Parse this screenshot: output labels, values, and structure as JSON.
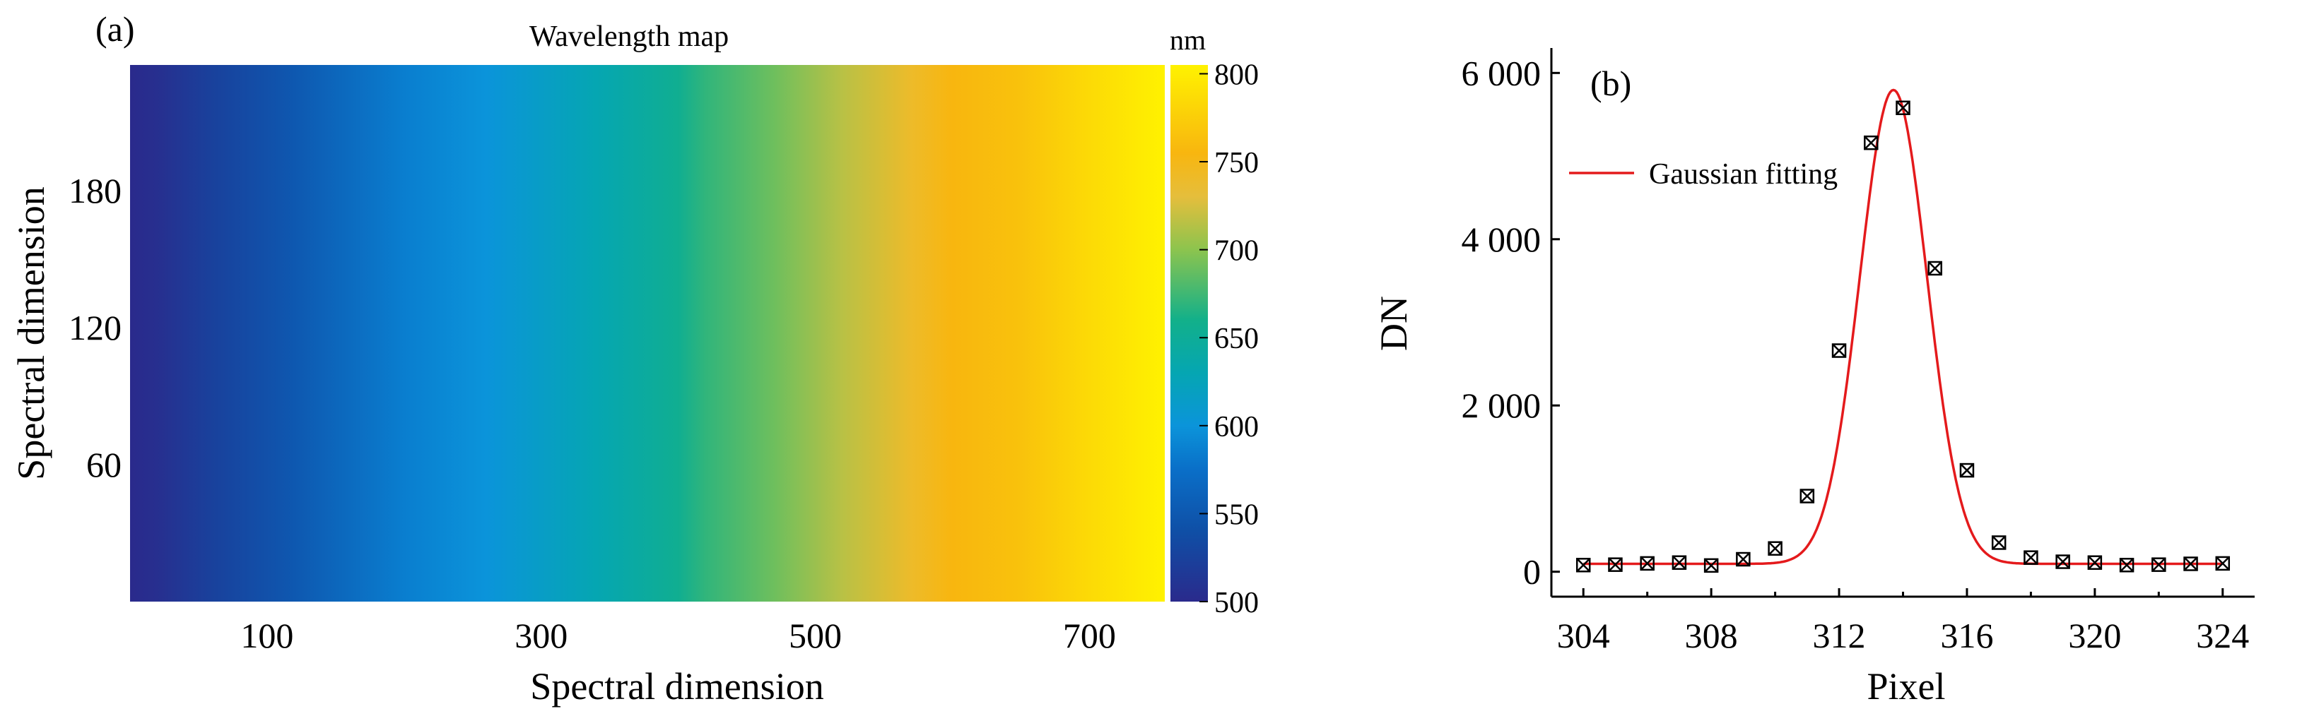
{
  "panel_a": {
    "label": "(a)",
    "chart_data": {
      "type": "heatmap",
      "title": "Wavelength map",
      "xlabel": "Spectral dimension",
      "ylabel": "Spectral dimension",
      "xticks": [
        100,
        300,
        500,
        700
      ],
      "yticks": [
        60,
        120,
        180
      ],
      "xlim": [
        0,
        755
      ],
      "ylim": [
        0,
        235
      ],
      "colorbar": {
        "unit": "nm",
        "ticks": [
          500,
          550,
          600,
          650,
          700,
          750,
          800
        ],
        "range": [
          500,
          805
        ],
        "stops": [
          {
            "value": 500,
            "color": "#2a2a8c"
          },
          {
            "value": 540,
            "color": "#0f4fa6"
          },
          {
            "value": 575,
            "color": "#0a6fc8"
          },
          {
            "value": 600,
            "color": "#0b94da"
          },
          {
            "value": 630,
            "color": "#05a6b2"
          },
          {
            "value": 660,
            "color": "#12b08a"
          },
          {
            "value": 700,
            "color": "#8cc44e"
          },
          {
            "value": 730,
            "color": "#e5be3c"
          },
          {
            "value": 755,
            "color": "#f8b60f"
          },
          {
            "value": 805,
            "color": "#fff200"
          }
        ]
      },
      "wavelength_profile": {
        "x": [
          0,
          20,
          60,
          120,
          200,
          260,
          340,
          400,
          420,
          470,
          520,
          570,
          600,
          650,
          700,
          755
        ],
        "nm": [
          500,
          505,
          525,
          550,
          585,
          600,
          630,
          655,
          670,
          690,
          715,
          740,
          755,
          765,
          785,
          805
        ]
      }
    }
  },
  "panel_b": {
    "label": "(b)",
    "chart_data": {
      "type": "scatter",
      "xlabel": "Pixel",
      "ylabel": "DN",
      "xlim": [
        303,
        325
      ],
      "ylim": [
        -300,
        6300
      ],
      "xticks": [
        304,
        308,
        312,
        316,
        320,
        324
      ],
      "yticks": [
        0,
        2000,
        4000,
        6000
      ],
      "ytick_labels": [
        "0",
        "2 000",
        "4 000",
        "6 000"
      ],
      "series": [
        {
          "kind": "points",
          "x": [
            304,
            305,
            306,
            307,
            308,
            309,
            310,
            311,
            312,
            313,
            314,
            315,
            316,
            317,
            318,
            319,
            320,
            321,
            322,
            323,
            324
          ],
          "y": [
            80,
            85,
            100,
            110,
            75,
            150,
            280,
            910,
            2660,
            5160,
            5580,
            3650,
            1220,
            350,
            170,
            120,
            110,
            80,
            85,
            95,
            100
          ]
        },
        {
          "kind": "line",
          "name": "Gaussian fitting",
          "color": "#e41a1c",
          "model": {
            "amplitude": 5700,
            "center": 313.7,
            "sigma": 1.05,
            "baseline": 95
          }
        }
      ],
      "legend_position": "top-left"
    }
  }
}
